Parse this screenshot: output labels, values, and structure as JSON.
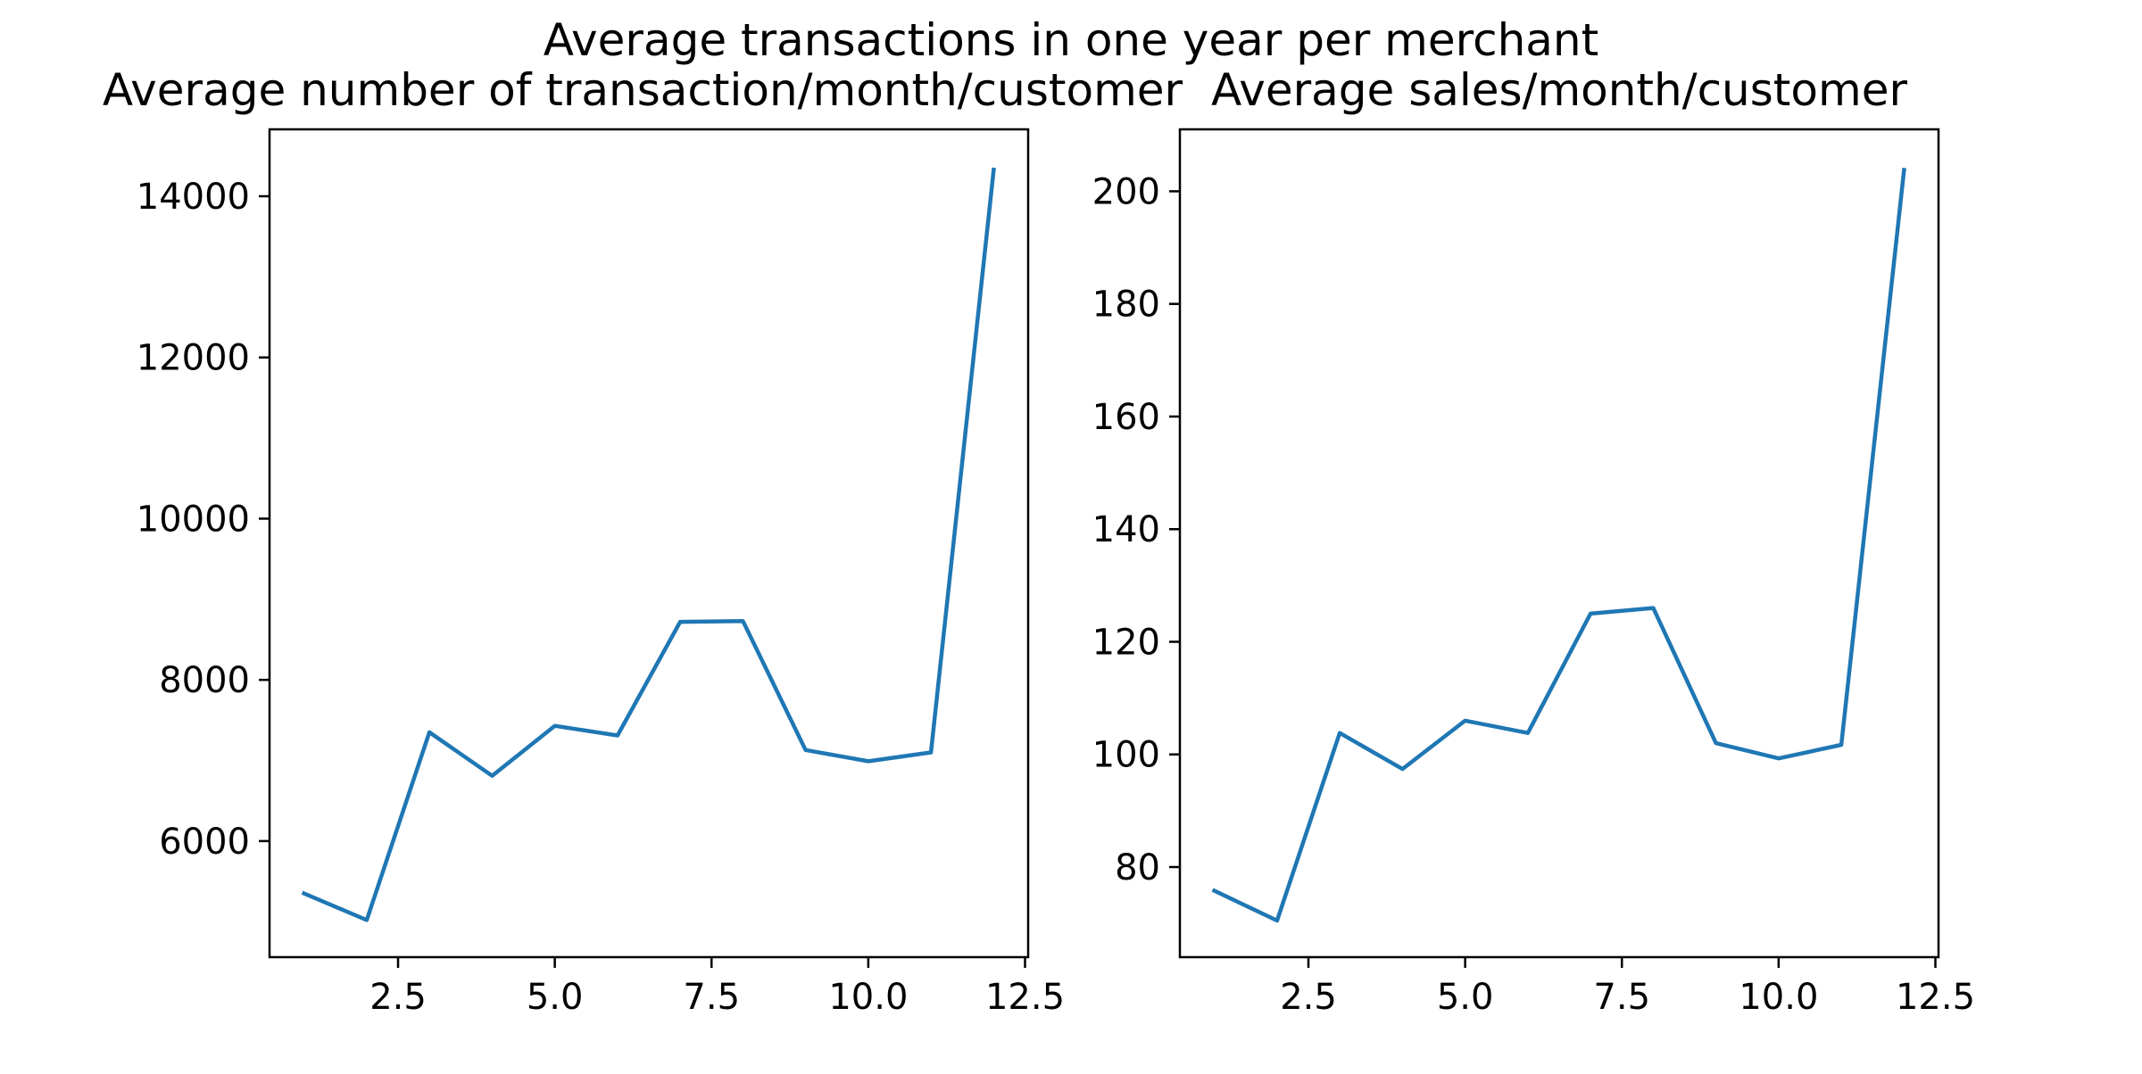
{
  "figure": {
    "suptitle": "Average transactions in one year per merchant"
  },
  "chart_data": [
    {
      "type": "line",
      "title": "Average number of transaction/month/customer",
      "xlabel": "",
      "ylabel": "",
      "xlim": [
        0.45,
        12.55
      ],
      "ylim": [
        4560,
        14830
      ],
      "xticks": [
        2.5,
        5.0,
        7.5,
        10.0,
        12.5
      ],
      "xtick_labels": [
        "2.5",
        "5.0",
        "7.5",
        "10.0",
        "12.5"
      ],
      "yticks": [
        6000,
        8000,
        10000,
        12000,
        14000
      ],
      "ytick_labels": [
        "6000",
        "8000",
        "10000",
        "12000",
        "14000"
      ],
      "grid": false,
      "color": "#1f77b4",
      "x": [
        1,
        2,
        3,
        4,
        5,
        6,
        7,
        8,
        9,
        10,
        11,
        12
      ],
      "y": [
        5350,
        5020,
        7350,
        6810,
        7430,
        7310,
        8720,
        8730,
        7130,
        6990,
        7100,
        14330
      ]
    },
    {
      "type": "line",
      "title": "Average sales/month/customer",
      "xlabel": "",
      "ylabel": "",
      "xlim": [
        0.45,
        12.55
      ],
      "ylim": [
        64,
        211
      ],
      "xticks": [
        2.5,
        5.0,
        7.5,
        10.0,
        12.5
      ],
      "xtick_labels": [
        "2.5",
        "5.0",
        "7.5",
        "10.0",
        "12.5"
      ],
      "yticks": [
        80,
        100,
        120,
        140,
        160,
        180,
        200
      ],
      "ytick_labels": [
        "80",
        "100",
        "120",
        "140",
        "160",
        "180",
        "200"
      ],
      "grid": false,
      "color": "#1f77b4",
      "x": [
        1,
        2,
        3,
        4,
        5,
        6,
        7,
        8,
        9,
        10,
        11,
        12
      ],
      "y": [
        75.8,
        70.5,
        103.8,
        97.4,
        106.0,
        103.8,
        125.0,
        126.0,
        102.0,
        99.3,
        101.7,
        203.8
      ]
    }
  ]
}
